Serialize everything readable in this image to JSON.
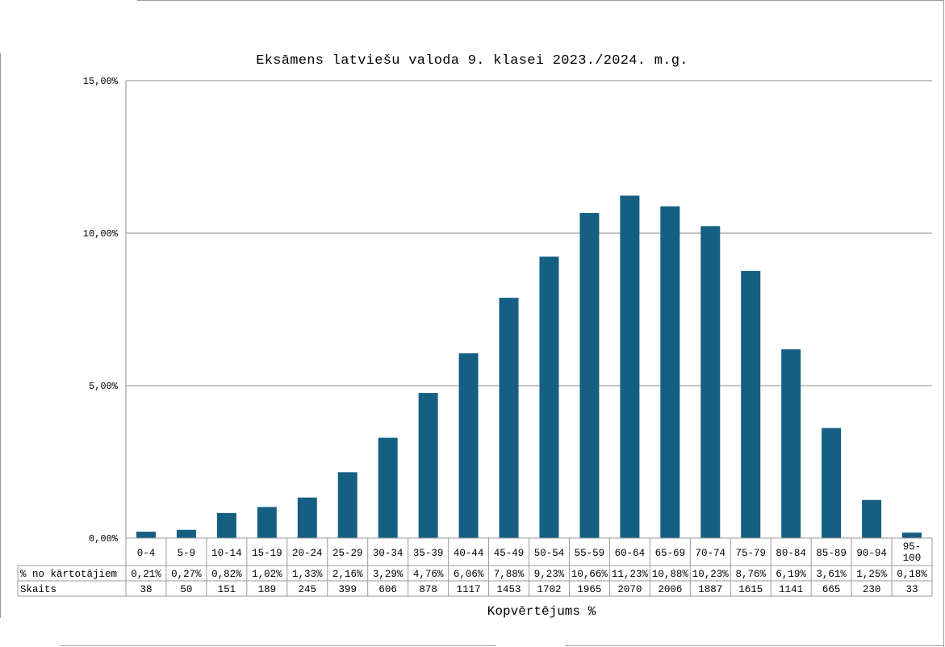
{
  "chart_data": {
    "type": "bar",
    "title": "Eksāmens latviešu valoda 9. klasei 2023./2024. m.g.",
    "xlabel": "Kopvērtējums %",
    "ylabel": "",
    "ylim": [
      0,
      15
    ],
    "yticks": [
      {
        "value": 0,
        "label": "0,00%"
      },
      {
        "value": 5,
        "label": "5,00%"
      },
      {
        "value": 10,
        "label": "10,00%"
      },
      {
        "value": 15,
        "label": "15,00%"
      }
    ],
    "grid": true,
    "bar_color": "#156082",
    "categories": [
      "0-4",
      "5-9",
      "10-14",
      "15-19",
      "20-24",
      "25-29",
      "30-34",
      "35-39",
      "40-44",
      "45-49",
      "50-54",
      "55-59",
      "60-64",
      "65-69",
      "70-74",
      "75-79",
      "80-84",
      "85-89",
      "90-94",
      "95-100"
    ],
    "values": [
      0.21,
      0.27,
      0.82,
      1.02,
      1.33,
      2.16,
      3.29,
      4.76,
      6.06,
      7.88,
      9.23,
      10.66,
      11.23,
      10.88,
      10.23,
      8.76,
      6.19,
      3.61,
      1.25,
      0.18
    ],
    "table": {
      "rows": [
        {
          "label": "% no kārtotājiem",
          "cells": [
            "0,21%",
            "0,27%",
            "0,82%",
            "1,02%",
            "1,33%",
            "2,16%",
            "3,29%",
            "4,76%",
            "6,06%",
            "7,88%",
            "9,23%",
            "10,66%",
            "11,23%",
            "10,88%",
            "10,23%",
            "8,76%",
            "6,19%",
            "3,61%",
            "1,25%",
            "0,18%"
          ]
        },
        {
          "label": "Skaits",
          "cells": [
            "38",
            "50",
            "151",
            "189",
            "245",
            "399",
            "606",
            "878",
            "1117",
            "1453",
            "1702",
            "1965",
            "2070",
            "2006",
            "1887",
            "1615",
            "1141",
            "665",
            "230",
            "33"
          ]
        }
      ]
    }
  }
}
